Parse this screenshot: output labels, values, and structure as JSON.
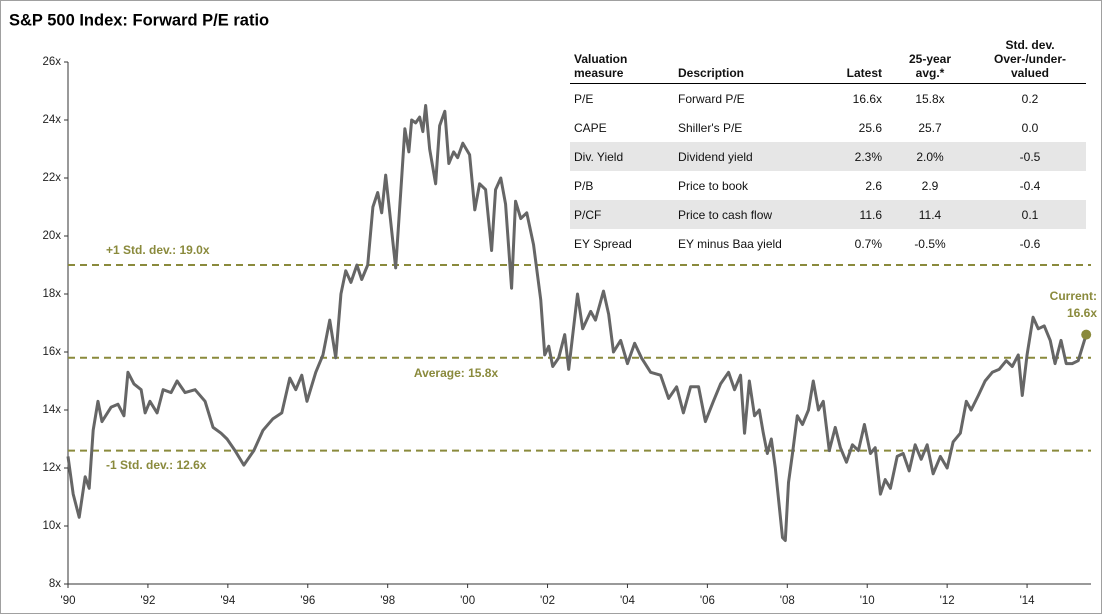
{
  "chart_data": {
    "type": "line",
    "title": "S&P 500 Index: Forward P/E ratio",
    "color": "#666666",
    "x": [
      1990.0,
      1990.13,
      1990.28,
      1990.43,
      1990.53,
      1990.63,
      1990.75,
      1990.85,
      1991.08,
      1991.25,
      1991.4,
      1991.5,
      1991.65,
      1991.83,
      1991.93,
      1992.05,
      1992.23,
      1992.38,
      1992.58,
      1992.73,
      1992.93,
      1993.18,
      1993.43,
      1993.63,
      1993.83,
      1993.98,
      1994.18,
      1994.4,
      1994.65,
      1994.88,
      1995.13,
      1995.35,
      1995.55,
      1995.7,
      1995.85,
      1995.98,
      1996.2,
      1996.38,
      1996.55,
      1996.7,
      1996.83,
      1996.95,
      1997.08,
      1997.23,
      1997.35,
      1997.5,
      1997.63,
      1997.75,
      1997.85,
      1997.95,
      1998.2,
      1998.35,
      1998.43,
      1998.53,
      1998.6,
      1998.7,
      1998.8,
      1998.88,
      1998.95,
      1999.05,
      1999.2,
      1999.3,
      1999.43,
      1999.53,
      1999.65,
      1999.75,
      1999.88,
      2000.05,
      2000.18,
      2000.3,
      2000.45,
      2000.6,
      2000.7,
      2000.83,
      2000.95,
      2001.1,
      2001.2,
      2001.33,
      2001.48,
      2001.65,
      2001.83,
      2001.93,
      2002.03,
      2002.13,
      2002.28,
      2002.43,
      2002.53,
      2002.75,
      2002.88,
      2003.08,
      2003.2,
      2003.4,
      2003.53,
      2003.65,
      2003.83,
      2004.0,
      2004.18,
      2004.35,
      2004.58,
      2004.83,
      2005.03,
      2005.23,
      2005.4,
      2005.58,
      2005.78,
      2005.95,
      2006.15,
      2006.33,
      2006.53,
      2006.68,
      2006.83,
      2006.93,
      2007.05,
      2007.18,
      2007.3,
      2007.4,
      2007.5,
      2007.6,
      2007.7,
      2007.88,
      2007.95,
      2008.03,
      2008.13,
      2008.25,
      2008.38,
      2008.53,
      2008.65,
      2008.78,
      2008.9,
      2009.05,
      2009.2,
      2009.33,
      2009.48,
      2009.63,
      2009.78,
      2009.93,
      2010.08,
      2010.2,
      2010.33,
      2010.45,
      2010.58,
      2010.75,
      2010.9,
      2011.05,
      2011.2,
      2011.35,
      2011.5,
      2011.65,
      2011.83,
      2012.0,
      2012.15,
      2012.33,
      2012.48,
      2012.6,
      2012.78,
      2012.95,
      2013.13,
      2013.3,
      2013.48,
      2013.63,
      2013.78,
      2013.88,
      2014.0,
      2014.15,
      2014.28,
      2014.43,
      2014.58,
      2014.7,
      2014.85,
      2014.98,
      2015.13,
      2015.28,
      2015.48
    ],
    "values": [
      12.4,
      11.1,
      10.3,
      11.7,
      11.3,
      13.3,
      14.3,
      13.6,
      14.1,
      14.2,
      13.8,
      15.3,
      14.9,
      14.7,
      13.9,
      14.3,
      13.9,
      14.7,
      14.6,
      15.0,
      14.6,
      14.7,
      14.3,
      13.4,
      13.2,
      13.0,
      12.6,
      12.1,
      12.6,
      13.3,
      13.7,
      13.9,
      15.1,
      14.7,
      15.2,
      14.3,
      15.3,
      15.9,
      17.1,
      15.8,
      18.0,
      18.8,
      18.4,
      19.0,
      18.5,
      19.0,
      21.0,
      21.5,
      20.8,
      22.1,
      18.9,
      22.0,
      23.7,
      22.9,
      24.0,
      23.9,
      24.1,
      23.6,
      24.5,
      23.0,
      21.8,
      23.8,
      24.3,
      22.5,
      22.9,
      22.7,
      23.2,
      22.8,
      20.9,
      21.8,
      21.6,
      19.5,
      21.6,
      22.0,
      21.1,
      18.2,
      21.2,
      20.6,
      20.8,
      19.7,
      17.8,
      15.9,
      16.2,
      15.5,
      15.8,
      16.6,
      15.4,
      18.0,
      16.8,
      17.4,
      17.1,
      18.1,
      17.3,
      16.0,
      16.4,
      15.6,
      16.3,
      15.8,
      15.3,
      15.2,
      14.4,
      14.8,
      13.9,
      14.8,
      14.8,
      13.6,
      14.3,
      14.9,
      15.3,
      14.7,
      15.2,
      13.2,
      15.0,
      13.8,
      14.0,
      13.2,
      12.5,
      13.0,
      12.0,
      9.6,
      9.5,
      11.5,
      12.5,
      13.8,
      13.5,
      14.0,
      15.0,
      14.0,
      14.3,
      12.6,
      13.4,
      12.7,
      12.2,
      12.8,
      12.6,
      13.5,
      12.5,
      12.7,
      11.1,
      11.6,
      11.3,
      12.4,
      12.5,
      11.9,
      12.8,
      12.3,
      12.8,
      11.8,
      12.4,
      12.0,
      12.9,
      13.2,
      14.3,
      14.0,
      14.5,
      15.0,
      15.3,
      15.4,
      15.7,
      15.5,
      15.9,
      14.5,
      15.9,
      17.2,
      16.8,
      16.9,
      16.4,
      15.6,
      16.4,
      15.6,
      15.6,
      15.7,
      16.6
    ],
    "xlim": [
      1990,
      2015.6
    ],
    "ylim": [
      8,
      26
    ],
    "xticks": [
      {
        "value": 1990,
        "label": "'90"
      },
      {
        "value": 1992,
        "label": "'92"
      },
      {
        "value": 1994,
        "label": "'94"
      },
      {
        "value": 1996,
        "label": "'96"
      },
      {
        "value": 1998,
        "label": "'98"
      },
      {
        "value": 2000,
        "label": "'00"
      },
      {
        "value": 2002,
        "label": "'02"
      },
      {
        "value": 2004,
        "label": "'04"
      },
      {
        "value": 2006,
        "label": "'06"
      },
      {
        "value": 2008,
        "label": "'08"
      },
      {
        "value": 2010,
        "label": "'10"
      },
      {
        "value": 2012,
        "label": "'12"
      },
      {
        "value": 2014,
        "label": "'14"
      }
    ],
    "yticks": [
      {
        "value": 8,
        "label": "8x"
      },
      {
        "value": 10,
        "label": "10x"
      },
      {
        "value": 12,
        "label": "12x"
      },
      {
        "value": 14,
        "label": "14x"
      },
      {
        "value": 16,
        "label": "16x"
      },
      {
        "value": 18,
        "label": "18x"
      },
      {
        "value": 20,
        "label": "20x"
      },
      {
        "value": 22,
        "label": "22x"
      },
      {
        "value": 24,
        "label": "24x"
      },
      {
        "value": 26,
        "label": "26x"
      }
    ],
    "grid": false,
    "reference_lines": [
      {
        "value": 19.0,
        "label": "+1 Std. dev.: 19.0x"
      },
      {
        "value": 15.8,
        "label": "Average: 15.8x"
      },
      {
        "value": 12.6,
        "label": "-1 Std. dev.: 12.6x"
      }
    ],
    "reference_color": "#8a8a3c",
    "current_label": [
      "Current:",
      "16.6x"
    ],
    "table": {
      "header": [
        [
          "Valuation",
          "measure"
        ],
        [
          "Description"
        ],
        [
          "Latest"
        ],
        [
          "25-year",
          "avg.*"
        ],
        [
          "Std. dev.",
          "Over-/under-",
          "valued"
        ]
      ],
      "rows": [
        [
          "P/E",
          "Forward P/E",
          "16.6x",
          "15.8x",
          "0.2"
        ],
        [
          "CAPE",
          "Shiller's P/E",
          "25.6",
          "25.7",
          "0.0"
        ],
        [
          "Div. Yield",
          "Dividend yield",
          "2.3%",
          "2.0%",
          "-0.5"
        ],
        [
          "P/B",
          "Price to book",
          "2.6",
          "2.9",
          "-0.4"
        ],
        [
          "P/CF",
          "Price to cash flow",
          "11.6",
          "11.4",
          "0.1"
        ],
        [
          "EY Spread",
          "EY minus Baa yield",
          "0.7%",
          "-0.5%",
          "-0.6"
        ]
      ]
    }
  }
}
